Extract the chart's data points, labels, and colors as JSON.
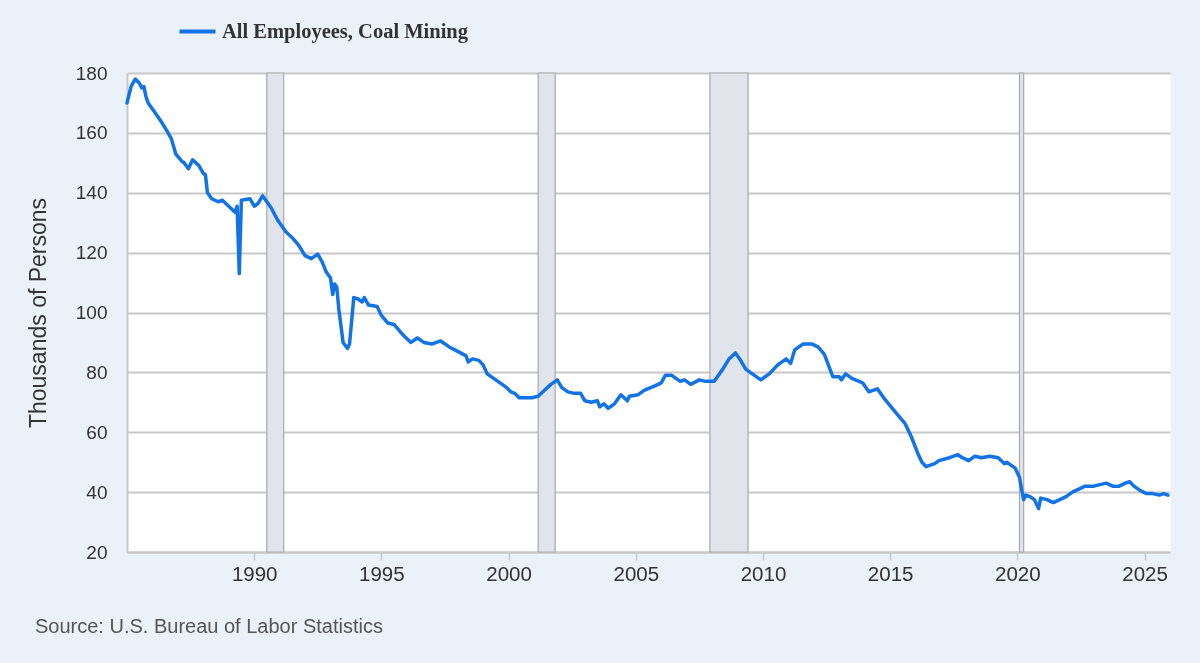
{
  "chart_data": {
    "type": "line",
    "ylabel": "Thousands of Persons",
    "annotations": [
      "Source: U.S. Bureau of Labor Statistics"
    ],
    "x": [
      "1985-01",
      "1985-03",
      "1985-05",
      "1985-07",
      "1985-08",
      "1985-09",
      "1985-10",
      "1985-11",
      "1986-02",
      "1986-05",
      "1986-08",
      "1986-10",
      "1986-12",
      "1987-03",
      "1987-04",
      "1987-06",
      "1987-08",
      "1987-11",
      "1988-01",
      "1988-02",
      "1988-03",
      "1988-05",
      "1988-08",
      "1988-10",
      "1989-01",
      "1989-04",
      "1989-05",
      "1989-06",
      "1989-07",
      "1989-11",
      "1990-01",
      "1990-03",
      "1990-05",
      "1990-09",
      "1990-12",
      "1991-04",
      "1991-07",
      "1991-10",
      "1992-01",
      "1992-04",
      "1992-07",
      "1992-09",
      "1992-11",
      "1993-01",
      "1993-02",
      "1993-03",
      "1993-04",
      "1993-05",
      "1993-07",
      "1993-09",
      "1993-10",
      "1993-12",
      "1994-02",
      "1994-04",
      "1994-05",
      "1994-07",
      "1994-11",
      "1995-01",
      "1995-04",
      "1995-07",
      "1995-10",
      "1995-12",
      "1996-03",
      "1996-06",
      "1996-09",
      "1997-01",
      "1997-05",
      "1997-09",
      "1998-01",
      "1998-05",
      "1998-06",
      "1998-08",
      "1998-11",
      "1999-01",
      "1999-03",
      "1999-07",
      "1999-10",
      "1999-12",
      "2000-02",
      "2000-04",
      "2000-06",
      "2000-12",
      "2001-03",
      "2001-06",
      "2001-09",
      "2001-12",
      "2002-02",
      "2002-05",
      "2002-08",
      "2002-11",
      "2003-01",
      "2003-04",
      "2003-07",
      "2003-08",
      "2003-10",
      "2003-12",
      "2004-03",
      "2004-06",
      "2004-09",
      "2004-10",
      "2005-02",
      "2005-05",
      "2005-10",
      "2006-01",
      "2006-03",
      "2006-06",
      "2006-10",
      "2006-12",
      "2007-03",
      "2007-07",
      "2007-10",
      "2008-02",
      "2008-06",
      "2008-09",
      "2008-12",
      "2009-02",
      "2009-05",
      "2009-09",
      "2009-12",
      "2010-04",
      "2010-08",
      "2010-12",
      "2011-02",
      "2011-04",
      "2011-06",
      "2011-08",
      "2011-12",
      "2012-03",
      "2012-06",
      "2012-10",
      "2013-01",
      "2013-02",
      "2013-04",
      "2013-07",
      "2013-12",
      "2014-03",
      "2014-07",
      "2014-10",
      "2015-02",
      "2015-05",
      "2015-08",
      "2015-11",
      "2016-02",
      "2016-04",
      "2016-06",
      "2016-10",
      "2016-12",
      "2017-05",
      "2017-09",
      "2017-11",
      "2018-02",
      "2018-05",
      "2018-08",
      "2018-12",
      "2019-04",
      "2019-07",
      "2019-08",
      "2019-12",
      "2020-02",
      "2020-03",
      "2020-04",
      "2020-05",
      "2020-07",
      "2020-09",
      "2020-11",
      "2020-12",
      "2021-03",
      "2021-06",
      "2021-09",
      "2021-12",
      "2022-03",
      "2022-06",
      "2022-09",
      "2023-01",
      "2023-04",
      "2023-07",
      "2023-10",
      "2024-01",
      "2024-04",
      "2024-06",
      "2024-08",
      "2024-11",
      "2025-02",
      "2025-05",
      "2025-08",
      "2025-10",
      "2025-12"
    ],
    "series": [
      {
        "name": "All Employees, Coal Mining",
        "color": "#1273e6",
        "values": [
          170,
          175.5,
          178,
          176.5,
          175,
          175.5,
          172,
          170,
          167,
          164,
          160.5,
          158,
          153,
          150.5,
          150,
          148,
          151,
          149,
          146.5,
          146,
          140,
          138,
          137,
          137.5,
          135.5,
          133.5,
          135.5,
          113,
          137.5,
          138,
          135.5,
          136.5,
          139,
          135,
          131,
          127,
          125,
          122.5,
          119,
          118,
          119.5,
          117,
          113.5,
          111.5,
          106,
          109.5,
          108.5,
          101,
          90,
          88,
          89.5,
          105,
          104.5,
          103.5,
          105,
          102.5,
          102,
          99,
          96.5,
          96,
          93.5,
          92,
          90,
          91.5,
          90,
          89.5,
          90.5,
          88.5,
          87,
          85.5,
          83.5,
          84.5,
          84,
          82.5,
          79.5,
          77.5,
          76,
          75,
          73.5,
          73,
          71.5,
          71.5,
          72,
          74,
          76,
          77.5,
          75,
          73.5,
          73,
          73,
          70.5,
          70,
          70.5,
          68.5,
          69.5,
          68,
          69.5,
          72.5,
          70.5,
          72,
          72.5,
          74,
          75.5,
          76.5,
          79,
          79,
          77,
          77.5,
          76,
          77.5,
          77,
          77,
          81,
          84.5,
          86.5,
          84.5,
          81,
          79,
          77.5,
          79.5,
          82.5,
          84.5,
          83,
          87.5,
          88.5,
          89.5,
          89.5,
          88.5,
          86,
          78.5,
          78.5,
          77.5,
          79.5,
          78,
          76.5,
          73.5,
          74.5,
          71.5,
          68,
          65.5,
          63,
          58.5,
          53,
          50,
          48.5,
          49.5,
          50.5,
          51.5,
          52.5,
          51.5,
          50.5,
          52,
          51.5,
          52,
          51.5,
          49.5,
          50,
          48,
          45,
          41,
          37.5,
          39,
          38.5,
          37.5,
          34.5,
          38,
          37.5,
          36.5,
          37.5,
          38.5,
          40,
          41,
          42,
          42,
          42.5,
          43,
          42,
          42,
          43,
          43.5,
          42,
          40.5,
          39.5,
          39.5,
          39,
          39.5,
          39
        ]
      }
    ],
    "xlim": [
      "1985-01",
      "2026-01"
    ],
    "xticks": [
      "1990",
      "1995",
      "2000",
      "2005",
      "2010",
      "2015",
      "2020",
      "2025"
    ],
    "ylim": [
      20,
      180
    ],
    "yticks": [
      20,
      40,
      60,
      80,
      100,
      120,
      140,
      160,
      180
    ],
    "bands": [
      {
        "axis": "x",
        "from": "1990-07",
        "to": "1991-03",
        "color": "#e1e5eb"
      },
      {
        "axis": "x",
        "from": "2001-03",
        "to": "2001-11",
        "color": "#e1e5eb"
      },
      {
        "axis": "x",
        "from": "2007-12",
        "to": "2009-06",
        "color": "#e1e5eb"
      },
      {
        "axis": "x",
        "from": "2020-02",
        "to": "2020-04",
        "color": "#e1e5eb"
      }
    ],
    "grid": "y",
    "legend": "top left",
    "line_style": "solid"
  }
}
